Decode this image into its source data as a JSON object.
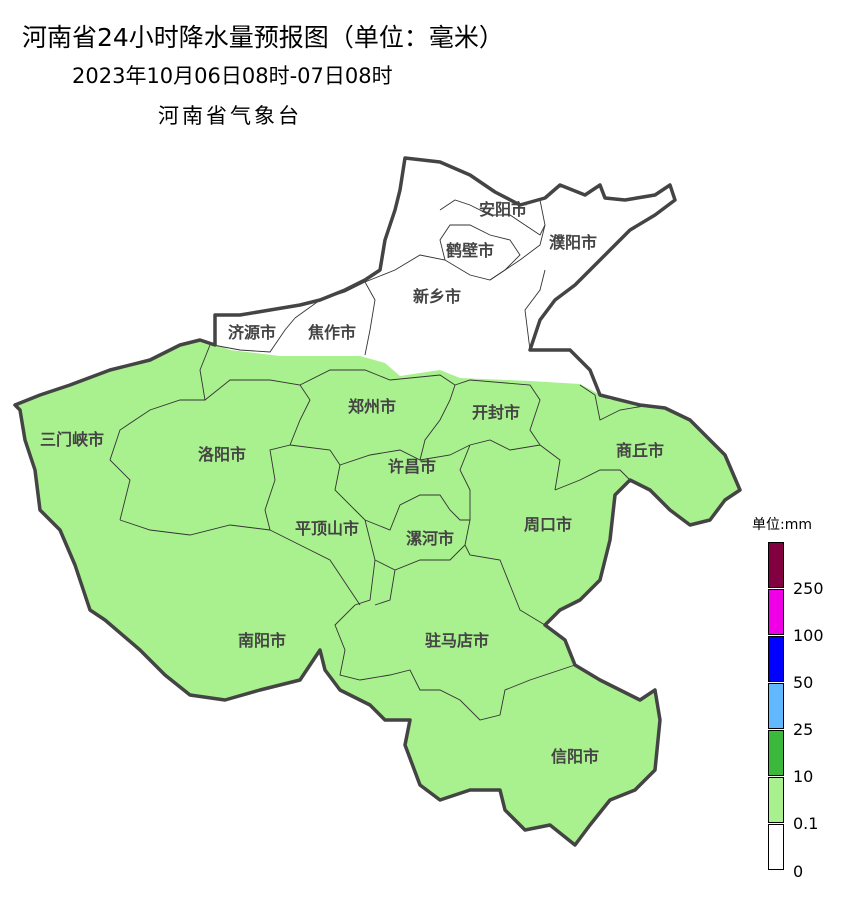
{
  "header": {
    "title": "河南省24小时降水量预报图（单位：毫米）",
    "period": "2023年10月06日08时-07日08时",
    "issuer": "河南省气象台"
  },
  "map": {
    "cities": [
      "安阳市",
      "鹤壁市",
      "濮阳市",
      "新乡市",
      "济源市",
      "焦作市",
      "郑州市",
      "开封市",
      "三门峡市",
      "洛阳市",
      "商丘市",
      "许昌市",
      "平顶山市",
      "漯河市",
      "周口市",
      "南阳市",
      "驻马店市",
      "信阳市"
    ],
    "forecast": {
      "north_edge": "0",
      "rest_of_province": "0.1-10"
    },
    "border_color": "#444444"
  },
  "legend": {
    "unit": "单位:mm",
    "bins": [
      {
        "color": "#800040"
      },
      {
        "color": "#f000e6",
        "label": "250"
      },
      {
        "color": "#0000ff",
        "label": "100"
      },
      {
        "color": "#61b8ff",
        "label": "50"
      },
      {
        "color": "#3cb93c",
        "label": "25"
      },
      {
        "color": "#a9f08e",
        "label": "10"
      },
      {
        "color": "#ffffff",
        "label": "0.1"
      }
    ],
    "bottom_label": "0"
  }
}
